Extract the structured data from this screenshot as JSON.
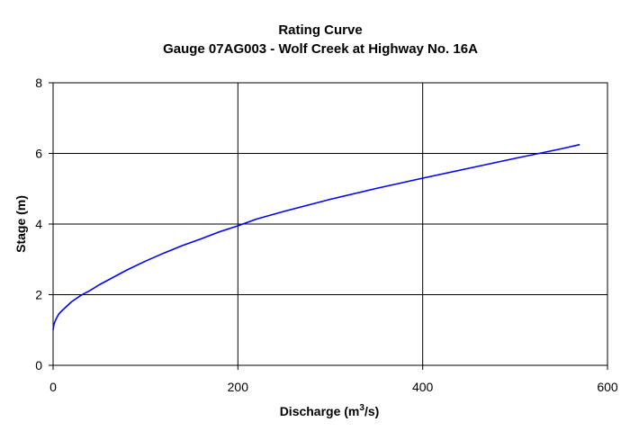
{
  "chart_data": {
    "type": "line",
    "title": "Rating Curve",
    "subtitle": "Gauge 07AG003 - Wolf Creek at Highway No. 16A",
    "xlabel": {
      "main": "Discharge (m",
      "sup": "3",
      "tail": "/s)"
    },
    "ylabel": "Stage (m)",
    "xlim": [
      0,
      600
    ],
    "ylim": [
      0,
      8
    ],
    "xticks": [
      0,
      200,
      400,
      600
    ],
    "yticks": [
      0,
      2,
      4,
      6,
      8
    ],
    "grid": true,
    "legend": "none",
    "series": [
      {
        "color": "#0000ff",
        "x": [
          0,
          1,
          3,
          6,
          10,
          15,
          20,
          30,
          40,
          50,
          60,
          80,
          100,
          120,
          140,
          160,
          180,
          200,
          220,
          250,
          300,
          350,
          400,
          450,
          500,
          550,
          570
        ],
        "y": [
          1.0,
          1.17,
          1.3,
          1.45,
          1.56,
          1.68,
          1.8,
          1.98,
          2.12,
          2.28,
          2.42,
          2.7,
          2.95,
          3.18,
          3.39,
          3.58,
          3.78,
          3.95,
          4.14,
          4.36,
          4.7,
          5.01,
          5.3,
          5.58,
          5.86,
          6.13,
          6.25
        ]
      }
    ]
  }
}
